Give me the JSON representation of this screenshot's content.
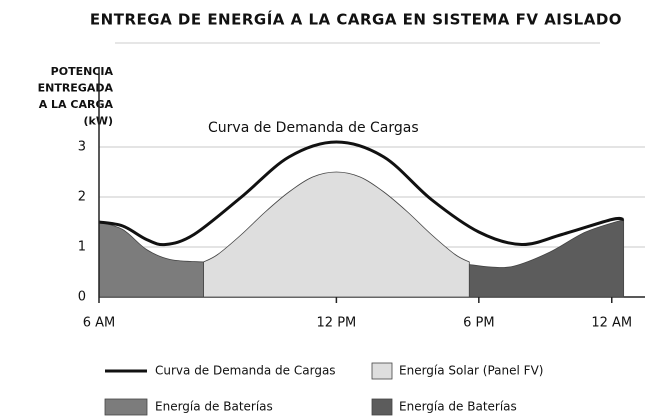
{
  "chart_data": {
    "type": "area",
    "title": "ENTREGA DE ENERGÍA A LA CARGA EN SISTEMA FV AISLADO",
    "y_label_lines": [
      "POTENCIA",
      "ENTREGADA",
      "A LA CARGA",
      "(kW)"
    ],
    "annotation": "Curva de Demanda de Cargas",
    "xlim": [
      0,
      23
    ],
    "xticks": [
      {
        "value": 0,
        "label": "6 AM"
      },
      {
        "value": 10,
        "label": "12 PM"
      },
      {
        "value": 16,
        "label": "6 PM"
      },
      {
        "value": 21.6,
        "label": "12 AM"
      }
    ],
    "ylim": [
      0,
      4.6
    ],
    "yticks": [
      0,
      1,
      2,
      3
    ],
    "grid": true,
    "series": [
      {
        "name": "Energía Solar (Panel FV)",
        "kind": "area",
        "color": "#dedede",
        "x": [
          4.4,
          5,
          6,
          7,
          8,
          9,
          10,
          11,
          12,
          13,
          14,
          15,
          15.6
        ],
        "values": [
          0.7,
          0.85,
          1.25,
          1.7,
          2.1,
          2.4,
          2.5,
          2.4,
          2.1,
          1.7,
          1.25,
          0.85,
          0.7
        ]
      },
      {
        "name": "Energía de Baterías",
        "kind": "area",
        "color": "#7c7c7c",
        "x": [
          0,
          1,
          2,
          3,
          4.4
        ],
        "values": [
          1.5,
          1.35,
          0.95,
          0.75,
          0.7
        ]
      },
      {
        "name": "Energía de Baterías",
        "kind": "area",
        "color": "#5c5c5c",
        "x": [
          15.6,
          16.5,
          17.5,
          19,
          20.5,
          22.1
        ],
        "values": [
          0.65,
          0.6,
          0.62,
          0.9,
          1.3,
          1.55
        ]
      },
      {
        "name": "Curva de Demanda de Cargas",
        "kind": "line",
        "color": "#111111",
        "x": [
          0,
          1,
          2,
          2.8,
          4,
          6,
          8,
          10,
          12,
          14,
          16,
          17.8,
          19.5,
          21.6,
          22.1
        ],
        "values": [
          1.5,
          1.42,
          1.15,
          1.05,
          1.25,
          2.0,
          2.8,
          3.1,
          2.8,
          1.95,
          1.3,
          1.05,
          1.25,
          1.55,
          1.55
        ]
      }
    ],
    "legend_order": [
      3,
      0,
      1,
      2
    ]
  }
}
